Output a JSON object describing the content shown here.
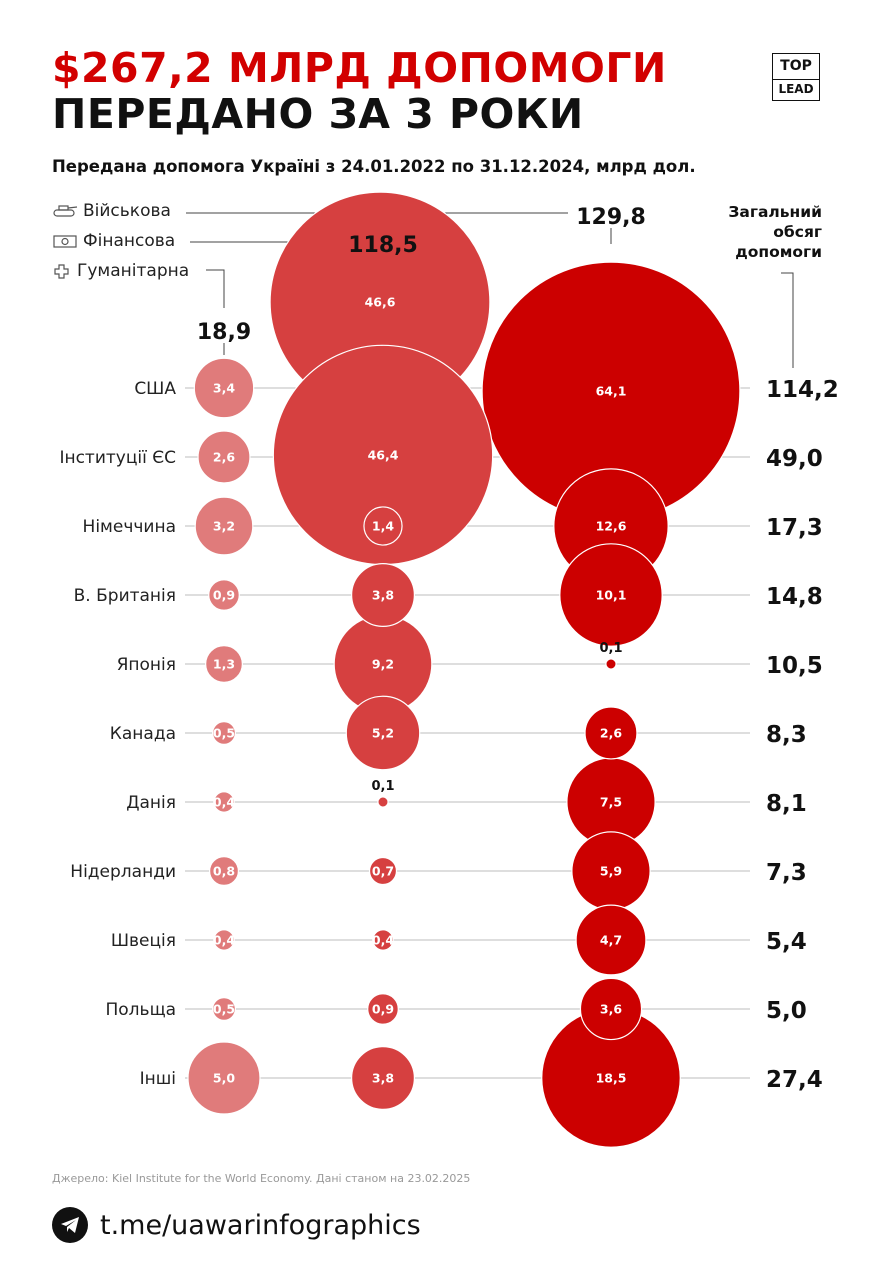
{
  "header": {
    "title_line1": "$267,2 МЛРД ДОПОМОГИ",
    "title_line2": "ПЕРЕДАНО ЗА 3 РОКИ",
    "subtitle": "Передана допомога Україні з 24.01.2022 по 31.12.2024, млрд дол.",
    "logo_top": "TOP",
    "logo_bottom": "LEAD"
  },
  "legend": {
    "military": "Військова",
    "financial": "Фінансова",
    "humanitarian": "Гуманітарна"
  },
  "total_header": [
    "Загальний",
    "обсяг",
    "допомоги"
  ],
  "colors": {
    "humanitarian": "#e07b7b",
    "financial": "#d64040",
    "military": "#cc0000",
    "title_accent": "#d20000"
  },
  "chart_data": {
    "type": "bubble",
    "title": "Передана допомога Україні з 24.01.2022 по 31.12.2024, млрд дол.",
    "unit": "млрд дол.",
    "series_totals": {
      "humanitarian": "18,9",
      "financial": "118,5",
      "military": "129,8"
    },
    "series": [
      {
        "name": "Гуманітарна",
        "key": "humanitarian"
      },
      {
        "name": "Фінансова",
        "key": "financial"
      },
      {
        "name": "Військова",
        "key": "military"
      }
    ],
    "rows": [
      {
        "country": "США",
        "humanitarian": 3.4,
        "financial": 46.6,
        "military": 64.1,
        "total": "114,2"
      },
      {
        "country": "Інституції ЄС",
        "humanitarian": 2.6,
        "financial": 46.4,
        "military": null,
        "total": "49,0"
      },
      {
        "country": "Німеччина",
        "humanitarian": 3.2,
        "financial": 1.4,
        "military": 12.6,
        "total": "17,3"
      },
      {
        "country": "В. Британія",
        "humanitarian": 0.9,
        "financial": 3.8,
        "military": 10.1,
        "total": "14,8"
      },
      {
        "country": "Японія",
        "humanitarian": 1.3,
        "financial": 9.2,
        "military": 0.1,
        "total": "10,5"
      },
      {
        "country": "Канада",
        "humanitarian": 0.5,
        "financial": 5.2,
        "military": 2.6,
        "total": "8,3"
      },
      {
        "country": "Данія",
        "humanitarian": 0.4,
        "financial": 0.1,
        "military": 7.5,
        "total": "8,1"
      },
      {
        "country": "Нідерланди",
        "humanitarian": 0.8,
        "financial": 0.7,
        "military": 5.9,
        "total": "7,3"
      },
      {
        "country": "Швеція",
        "humanitarian": 0.4,
        "financial": 0.4,
        "military": 4.7,
        "total": "5,4"
      },
      {
        "country": "Польща",
        "humanitarian": 0.5,
        "financial": 0.9,
        "military": 3.6,
        "total": "5,0"
      },
      {
        "country": "Інші",
        "humanitarian": 5.0,
        "financial": 3.8,
        "military": 18.5,
        "total": "27,4"
      }
    ]
  },
  "source": "Джерело: Kiel Institute for the World Economy. Дані станом на 23.02.2025",
  "footer": {
    "link": "t.me/uawarinfographics",
    "icon": "telegram-icon"
  }
}
